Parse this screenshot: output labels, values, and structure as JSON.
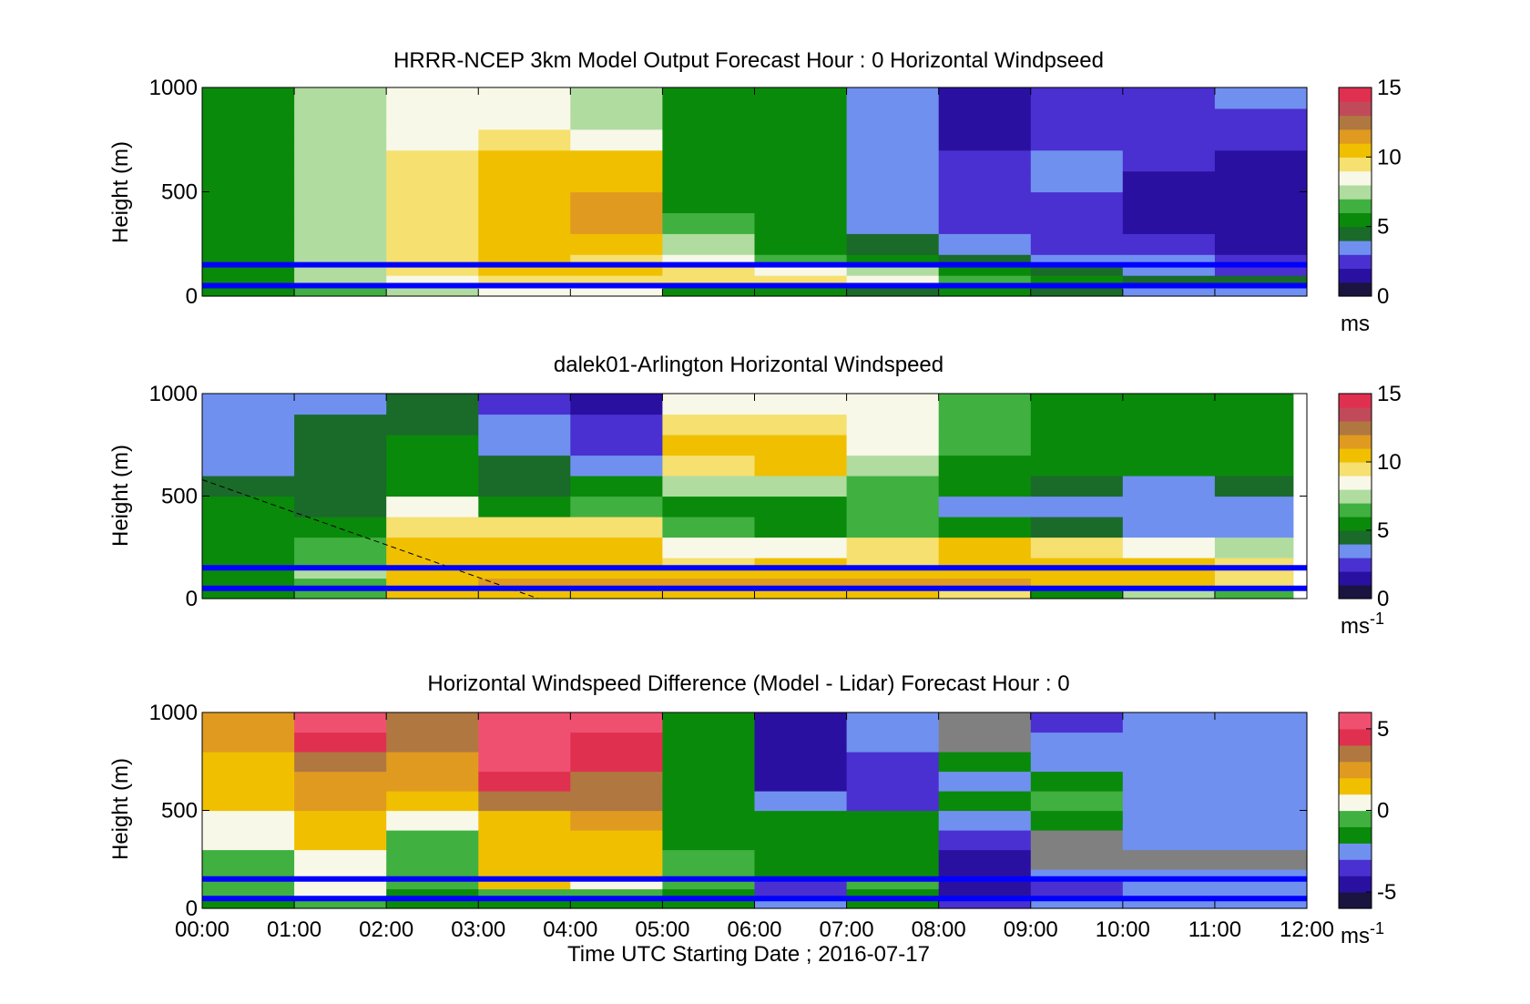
{
  "figure": {
    "xlabel": "Time UTC  Starting Date ; 2016-07-17",
    "xticks": [
      "00:00",
      "01:00",
      "02:00",
      "03:00",
      "04:00",
      "05:00",
      "06:00",
      "07:00",
      "08:00",
      "09:00",
      "10:00",
      "11:00",
      "12:00"
    ]
  },
  "palette": {
    "speed": [
      "#1a1440",
      "#2a10a0",
      "#4a30d0",
      "#7090f0",
      "#1a6a2a",
      "#0a8a0a",
      "#40b040",
      "#b0dca0",
      "#f8f8e8",
      "#f5e070",
      "#f0c000",
      "#e09a20",
      "#b07840",
      "#c04a5a",
      "#e03050"
    ],
    "diff": [
      "#1a1440",
      "#2a10a0",
      "#4a30d0",
      "#7090f0",
      "#0a8a0a",
      "#40b040",
      "#f8f8e8",
      "#f0c000",
      "#e09a20",
      "#b07840",
      "#e03050",
      "#f05070"
    ],
    "reference_lines": "#0000ff",
    "missing": "#808080"
  },
  "chart_data": [
    {
      "type": "heatmap",
      "title": "HRRR-NCEP 3km Model Output   Forecast Hour : 0 Horizontal Windpseed",
      "xlabel": "",
      "ylabel": "Height (m)",
      "yticks": [
        "0",
        "500",
        "1000"
      ],
      "xlim": [
        0,
        12
      ],
      "ylim": [
        0,
        1000
      ],
      "colorbar": {
        "label": "ms",
        "ticks": [
          "0",
          "5",
          "10",
          "15"
        ],
        "clim": [
          0,
          15
        ]
      },
      "reference_heights": [
        150,
        50
      ],
      "x": [
        0,
        1,
        2,
        3,
        4,
        5,
        6,
        7,
        8,
        9,
        10,
        11
      ],
      "heights": [
        0,
        50,
        100,
        150,
        200,
        300,
        400,
        500,
        600,
        700,
        800,
        900,
        1000
      ],
      "values": [
        [
          5,
          6,
          7,
          8,
          8,
          5,
          5,
          4,
          5,
          4,
          3,
          3
        ],
        [
          5,
          7,
          8,
          9,
          9,
          9,
          9,
          8,
          6,
          5,
          4,
          4
        ],
        [
          5,
          7,
          9,
          10,
          10,
          9,
          8,
          7,
          5,
          4,
          3,
          2
        ],
        [
          5,
          7,
          9,
          10,
          9,
          8,
          6,
          5,
          4,
          3,
          3,
          2
        ],
        [
          5,
          7,
          9,
          10,
          10,
          7,
          5,
          4,
          3,
          2,
          2,
          1
        ],
        [
          5,
          7,
          9,
          10,
          11,
          6,
          5,
          3,
          2,
          2,
          1,
          1
        ],
        [
          5,
          7,
          9,
          10,
          11,
          5,
          5,
          3,
          2,
          2,
          1,
          1
        ],
        [
          5,
          7,
          9,
          10,
          10,
          5,
          5,
          3,
          2,
          3,
          1,
          1
        ],
        [
          5,
          7,
          9,
          10,
          10,
          5,
          5,
          3,
          2,
          3,
          2,
          1
        ],
        [
          5,
          7,
          8,
          9,
          8,
          5,
          5,
          3,
          1,
          2,
          2,
          2
        ],
        [
          5,
          7,
          8,
          8,
          7,
          5,
          5,
          3,
          1,
          2,
          2,
          2
        ],
        [
          5,
          7,
          8,
          8,
          7,
          5,
          5,
          3,
          1,
          2,
          2,
          3
        ]
      ]
    },
    {
      "type": "heatmap",
      "title": "dalek01-Arlington  Horizontal Windspeed",
      "xlabel": "",
      "ylabel": "Height (m)",
      "yticks": [
        "0",
        "500",
        "1000"
      ],
      "xlim": [
        0,
        12
      ],
      "ylim": [
        0,
        1000
      ],
      "colorbar": {
        "label": "ms",
        "label_superscript": "-1",
        "ticks": [
          "0",
          "5",
          "10",
          "15"
        ],
        "clim": [
          0,
          15
        ]
      },
      "reference_heights": [
        150,
        50
      ],
      "data_end_hour": 11.85,
      "dashed_line": {
        "x": [
          0,
          3.65
        ],
        "y": [
          580,
          0
        ]
      },
      "x": [
        0,
        1,
        2,
        3,
        4,
        5,
        6,
        7,
        8,
        9,
        10,
        11
      ],
      "heights": [
        0,
        50,
        100,
        150,
        200,
        300,
        400,
        500,
        600,
        700,
        800,
        900,
        1000
      ],
      "values": [
        [
          5,
          6,
          10,
          10,
          10,
          10,
          10,
          10,
          9,
          5,
          7,
          6
        ],
        [
          5,
          6,
          10,
          11,
          11,
          11,
          11,
          11,
          11,
          10,
          10,
          9
        ],
        [
          5,
          7,
          10,
          10,
          10,
          10,
          10,
          10,
          10,
          10,
          10,
          9
        ],
        [
          5,
          6,
          10,
          10,
          10,
          9,
          10,
          9,
          10,
          10,
          10,
          9
        ],
        [
          5,
          6,
          10,
          10,
          10,
          8,
          8,
          9,
          10,
          9,
          8,
          7
        ],
        [
          5,
          5,
          9,
          9,
          9,
          6,
          5,
          6,
          5,
          4,
          3,
          3
        ],
        [
          5,
          4,
          8,
          5,
          6,
          5,
          5,
          6,
          3,
          3,
          3,
          3
        ],
        [
          4,
          4,
          5,
          4,
          5,
          7,
          7,
          6,
          5,
          4,
          3,
          4
        ],
        [
          3,
          4,
          5,
          4,
          3,
          9,
          10,
          7,
          5,
          5,
          5,
          5
        ],
        [
          3,
          4,
          5,
          3,
          2,
          10,
          10,
          8,
          6,
          5,
          5,
          5
        ],
        [
          3,
          4,
          4,
          3,
          2,
          9,
          9,
          8,
          6,
          5,
          5,
          5
        ],
        [
          3,
          3,
          4,
          2,
          1,
          8,
          8,
          8,
          6,
          5,
          5,
          5
        ]
      ]
    },
    {
      "type": "heatmap",
      "title": "Horizontal Windspeed Difference (Model - Lidar) Forecast Hour : 0",
      "xlabel": "Time UTC  Starting Date ; 2016-07-17",
      "ylabel": "Height (m)",
      "yticks": [
        "0",
        "500",
        "1000"
      ],
      "xlim": [
        0,
        12
      ],
      "ylim": [
        0,
        1000
      ],
      "colorbar": {
        "label": "ms",
        "label_superscript": "-1",
        "ticks": [
          "-5",
          "0",
          "5"
        ],
        "clim": [
          -6,
          6
        ]
      },
      "reference_heights": [
        150,
        50
      ],
      "missing_value": null,
      "x": [
        0,
        1,
        2,
        3,
        4,
        5,
        6,
        7,
        8,
        9,
        10,
        11
      ],
      "heights": [
        0,
        50,
        100,
        150,
        200,
        300,
        400,
        500,
        600,
        700,
        800,
        900,
        1000
      ],
      "values": [
        [
          -2,
          -1,
          -2,
          -2,
          -2,
          -2,
          -3,
          -2,
          -4,
          -3,
          -3,
          -3
        ],
        [
          -1,
          0,
          -2,
          -1,
          -1,
          -2,
          -4,
          -2,
          -5,
          -4,
          -3,
          -3
        ],
        [
          -1,
          0,
          -1,
          1,
          0,
          -1,
          -4,
          -1,
          -5,
          -4,
          -3,
          -3
        ],
        [
          -1,
          0,
          -1,
          1,
          1,
          -1,
          -2,
          -2,
          -5,
          -3,
          -3,
          -3
        ],
        [
          -1,
          0,
          -1,
          1,
          1,
          -1,
          -2,
          -2,
          -5,
          null,
          null,
          null
        ],
        [
          0,
          1,
          -1,
          1,
          1,
          -2,
          -2,
          -2,
          -4,
          null,
          -3,
          -3
        ],
        [
          0,
          1,
          0,
          1,
          2,
          -2,
          -2,
          -2,
          -3,
          -2,
          -3,
          -3
        ],
        [
          1,
          2,
          1,
          3,
          3,
          -2,
          -3,
          -4,
          -2,
          -1,
          -3,
          -3
        ],
        [
          1,
          2,
          2,
          4,
          3,
          -2,
          -5,
          -4,
          -3,
          -2,
          -3,
          -3
        ],
        [
          1,
          3,
          2,
          5,
          4,
          -2,
          -5,
          -4,
          -2,
          -3,
          -3,
          -3
        ],
        [
          2,
          4,
          3,
          6,
          4,
          -2,
          -5,
          -3,
          null,
          -3,
          -3,
          -3
        ],
        [
          2,
          5,
          3,
          6,
          5,
          -2,
          -5,
          -3,
          null,
          -4,
          -3,
          -3
        ]
      ]
    }
  ]
}
